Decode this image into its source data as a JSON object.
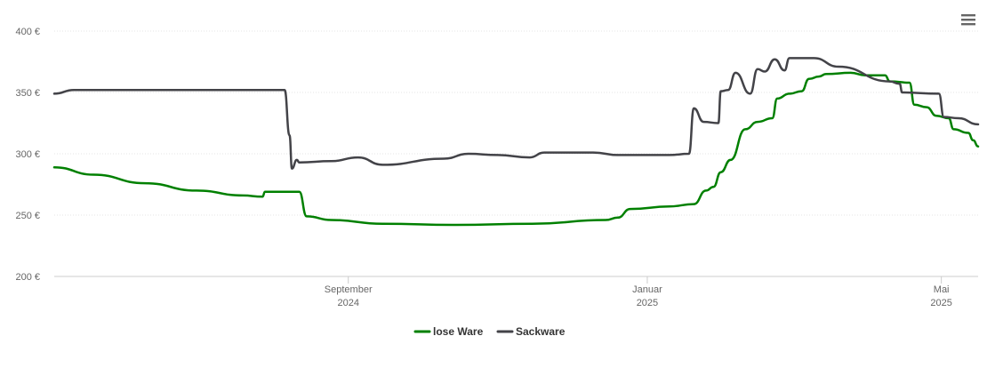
{
  "chart_data": {
    "type": "line",
    "title": "",
    "xlabel": "",
    "ylabel": "",
    "ylim": [
      200,
      400
    ],
    "y_ticks": [
      "200 €",
      "250 €",
      "300 €",
      "350 €",
      "400 €"
    ],
    "x_ticks": [
      {
        "line1": "September",
        "line2": "2024",
        "date": "2024-09-01"
      },
      {
        "line1": "Januar",
        "line2": "2025",
        "date": "2025-01-01"
      },
      {
        "line1": "Mai",
        "line2": "2025",
        "date": "2025-05-01"
      }
    ],
    "xlim": [
      "2024-05-04",
      "2025-05-16"
    ],
    "grid": "horizontal",
    "legend_position": "bottom-center",
    "series": [
      {
        "name": "lose Ware",
        "color": "#008000",
        "points": [
          [
            "2024-05-04",
            289
          ],
          [
            "2024-05-20",
            283
          ],
          [
            "2024-06-10",
            276
          ],
          [
            "2024-07-01",
            270
          ],
          [
            "2024-07-20",
            266
          ],
          [
            "2024-07-28",
            265
          ],
          [
            "2024-07-29",
            269
          ],
          [
            "2024-08-12",
            269
          ],
          [
            "2024-08-15",
            249
          ],
          [
            "2024-08-25",
            246
          ],
          [
            "2024-09-15",
            243
          ],
          [
            "2024-10-15",
            242
          ],
          [
            "2024-11-15",
            243
          ],
          [
            "2024-12-15",
            246
          ],
          [
            "2024-12-20",
            248
          ],
          [
            "2024-12-25",
            255
          ],
          [
            "2025-01-10",
            257
          ],
          [
            "2025-01-20",
            259
          ],
          [
            "2025-01-25",
            270
          ],
          [
            "2025-01-28",
            273
          ],
          [
            "2025-01-31",
            285
          ],
          [
            "2025-02-04",
            295
          ],
          [
            "2025-02-10",
            320
          ],
          [
            "2025-02-15",
            326
          ],
          [
            "2025-02-21",
            329
          ],
          [
            "2025-02-23",
            345
          ],
          [
            "2025-02-28",
            349
          ],
          [
            "2025-03-05",
            351
          ],
          [
            "2025-03-08",
            361
          ],
          [
            "2025-03-12",
            363
          ],
          [
            "2025-03-15",
            365
          ],
          [
            "2025-03-25",
            366
          ],
          [
            "2025-03-31",
            364
          ],
          [
            "2025-04-03",
            364
          ],
          [
            "2025-04-08",
            364
          ],
          [
            "2025-04-10",
            359
          ],
          [
            "2025-04-18",
            358
          ],
          [
            "2025-04-20",
            340
          ],
          [
            "2025-04-25",
            338
          ],
          [
            "2025-04-29",
            331
          ],
          [
            "2025-05-04",
            329
          ],
          [
            "2025-05-06",
            320
          ],
          [
            "2025-05-12",
            317
          ],
          [
            "2025-05-14",
            311
          ],
          [
            "2025-05-16",
            306
          ]
        ]
      },
      {
        "name": "Sackware",
        "color": "#434348",
        "points": [
          [
            "2024-05-04",
            349
          ],
          [
            "2024-05-12",
            352
          ],
          [
            "2024-06-10",
            352
          ],
          [
            "2024-07-10",
            352
          ],
          [
            "2024-08-06",
            352
          ],
          [
            "2024-08-08",
            315
          ],
          [
            "2024-08-09",
            288
          ],
          [
            "2024-08-11",
            295
          ],
          [
            "2024-08-12",
            293
          ],
          [
            "2024-08-25",
            294
          ],
          [
            "2024-09-05",
            297
          ],
          [
            "2024-09-15",
            291
          ],
          [
            "2024-10-10",
            296
          ],
          [
            "2024-10-20",
            300
          ],
          [
            "2024-11-01",
            299
          ],
          [
            "2024-11-14",
            297
          ],
          [
            "2024-11-20",
            301
          ],
          [
            "2024-12-10",
            301
          ],
          [
            "2024-12-20",
            299
          ],
          [
            "2025-01-10",
            299
          ],
          [
            "2025-01-18",
            300
          ],
          [
            "2025-01-20",
            337
          ],
          [
            "2025-01-24",
            326
          ],
          [
            "2025-01-30",
            325
          ],
          [
            "2025-01-31",
            351
          ],
          [
            "2025-02-03",
            352
          ],
          [
            "2025-02-06",
            366
          ],
          [
            "2025-02-12",
            349
          ],
          [
            "2025-02-15",
            369
          ],
          [
            "2025-02-18",
            367
          ],
          [
            "2025-02-22",
            377
          ],
          [
            "2025-02-26",
            368
          ],
          [
            "2025-02-28",
            378
          ],
          [
            "2025-03-10",
            378
          ],
          [
            "2025-03-20",
            371
          ],
          [
            "2025-04-10",
            359
          ],
          [
            "2025-04-14",
            357
          ],
          [
            "2025-04-15",
            350
          ],
          [
            "2025-04-30",
            349
          ],
          [
            "2025-05-02",
            330
          ],
          [
            "2025-05-08",
            329
          ],
          [
            "2025-05-16",
            324
          ]
        ]
      }
    ]
  },
  "toolbar": {
    "menu_icon": "hamburger-icon"
  }
}
